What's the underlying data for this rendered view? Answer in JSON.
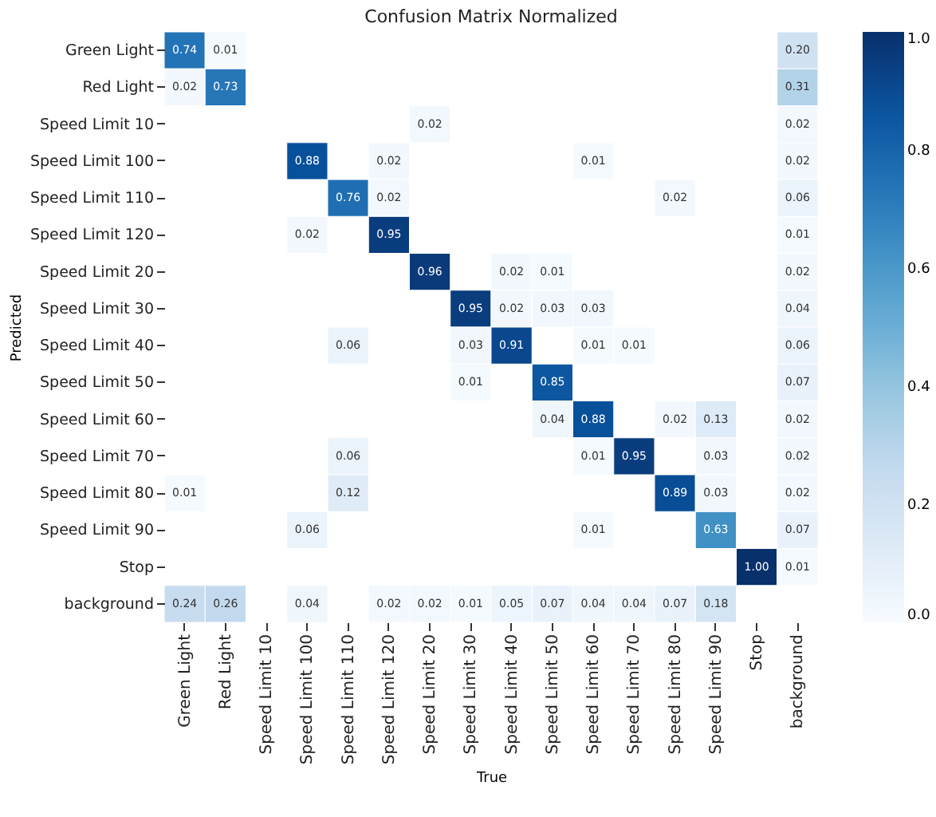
{
  "chart_data": {
    "type": "heatmap",
    "title": "Confusion Matrix Normalized",
    "xlabel": "True",
    "ylabel": "Predicted",
    "categories": [
      "Green Light",
      "Red Light",
      "Speed Limit 10",
      "Speed Limit 100",
      "Speed Limit 110",
      "Speed Limit 120",
      "Speed Limit 20",
      "Speed Limit 30",
      "Speed Limit 40",
      "Speed Limit 50",
      "Speed Limit 60",
      "Speed Limit 70",
      "Speed Limit 80",
      "Speed Limit 90",
      "Stop",
      "background"
    ],
    "y_categories": [
      "Green Light",
      "Red Light",
      "Speed Limit 10",
      "Speed Limit 100",
      "Speed Limit 110",
      "Speed Limit 120",
      "Speed Limit 20",
      "Speed Limit 30",
      "Speed Limit 40",
      "Speed Limit 50",
      "Speed Limit 60",
      "Speed Limit 70",
      "Speed Limit 80",
      "Speed Limit 90",
      "Stop",
      "background"
    ],
    "cells": [
      [
        0.74,
        0.01,
        null,
        null,
        null,
        null,
        null,
        null,
        null,
        null,
        null,
        null,
        null,
        null,
        null,
        0.2
      ],
      [
        0.02,
        0.73,
        null,
        null,
        null,
        null,
        null,
        null,
        null,
        null,
        null,
        null,
        null,
        null,
        null,
        0.31
      ],
      [
        null,
        null,
        null,
        null,
        null,
        null,
        0.02,
        null,
        null,
        null,
        null,
        null,
        null,
        null,
        null,
        0.02
      ],
      [
        null,
        null,
        null,
        0.88,
        null,
        0.02,
        null,
        null,
        null,
        null,
        0.01,
        null,
        null,
        null,
        null,
        0.02
      ],
      [
        null,
        null,
        null,
        null,
        0.76,
        0.02,
        null,
        null,
        null,
        null,
        null,
        null,
        0.02,
        null,
        null,
        0.06
      ],
      [
        null,
        null,
        null,
        0.02,
        null,
        0.95,
        null,
        null,
        null,
        null,
        null,
        null,
        null,
        null,
        null,
        0.01
      ],
      [
        null,
        null,
        null,
        null,
        null,
        null,
        0.96,
        null,
        0.02,
        0.01,
        null,
        null,
        null,
        null,
        null,
        0.02
      ],
      [
        null,
        null,
        null,
        null,
        null,
        null,
        null,
        0.95,
        0.02,
        0.03,
        0.03,
        null,
        null,
        null,
        null,
        0.04
      ],
      [
        null,
        null,
        null,
        null,
        0.06,
        null,
        null,
        0.03,
        0.91,
        null,
        0.01,
        0.01,
        null,
        null,
        null,
        0.06
      ],
      [
        null,
        null,
        null,
        null,
        null,
        null,
        null,
        0.01,
        null,
        0.85,
        null,
        null,
        null,
        null,
        null,
        0.07
      ],
      [
        null,
        null,
        null,
        null,
        null,
        null,
        null,
        null,
        null,
        0.04,
        0.88,
        null,
        0.02,
        0.13,
        null,
        0.02
      ],
      [
        null,
        null,
        null,
        null,
        0.06,
        null,
        null,
        null,
        null,
        null,
        0.01,
        0.95,
        null,
        0.03,
        null,
        0.02
      ],
      [
        0.01,
        null,
        null,
        null,
        0.12,
        null,
        null,
        null,
        null,
        null,
        null,
        null,
        0.89,
        0.03,
        null,
        0.02
      ],
      [
        null,
        null,
        null,
        0.06,
        null,
        null,
        null,
        null,
        null,
        null,
        0.01,
        null,
        null,
        0.63,
        null,
        0.07
      ],
      [
        null,
        null,
        null,
        null,
        null,
        null,
        null,
        null,
        null,
        null,
        null,
        null,
        null,
        null,
        1.0,
        0.01
      ],
      [
        0.24,
        0.26,
        null,
        0.04,
        null,
        0.02,
        0.02,
        0.01,
        0.05,
        0.07,
        0.04,
        0.04,
        0.07,
        0.18,
        null,
        null
      ]
    ],
    "cell_labels": [
      [
        "0.74",
        "0.01",
        null,
        null,
        null,
        null,
        null,
        null,
        null,
        null,
        null,
        null,
        null,
        null,
        null,
        "0.20"
      ],
      [
        "0.02",
        "0.73",
        null,
        null,
        null,
        null,
        null,
        null,
        null,
        null,
        null,
        null,
        null,
        null,
        null,
        "0.31"
      ],
      [
        null,
        null,
        null,
        null,
        null,
        null,
        "0.02",
        null,
        null,
        null,
        null,
        null,
        null,
        null,
        null,
        "0.02"
      ],
      [
        null,
        null,
        null,
        "0.88",
        null,
        "0.02",
        null,
        null,
        null,
        null,
        "0.01",
        null,
        null,
        null,
        null,
        "0.02"
      ],
      [
        null,
        null,
        null,
        null,
        "0.76",
        "0.02",
        null,
        null,
        null,
        null,
        null,
        null,
        "0.02",
        null,
        null,
        "0.06"
      ],
      [
        null,
        null,
        null,
        "0.02",
        null,
        "0.95",
        null,
        null,
        null,
        null,
        null,
        null,
        null,
        null,
        null,
        "0.01"
      ],
      [
        null,
        null,
        null,
        null,
        null,
        null,
        "0.96",
        null,
        "0.02",
        "0.01",
        null,
        null,
        null,
        null,
        null,
        "0.02"
      ],
      [
        null,
        null,
        null,
        null,
        null,
        null,
        null,
        "0.95",
        "0.02",
        "0.03",
        "0.03",
        null,
        null,
        null,
        null,
        "0.04"
      ],
      [
        null,
        null,
        null,
        null,
        "0.06",
        null,
        null,
        "0.03",
        "0.91",
        null,
        "0.01",
        "0.01",
        null,
        null,
        null,
        "0.06"
      ],
      [
        null,
        null,
        null,
        null,
        null,
        null,
        null,
        "0.01",
        null,
        "0.85",
        null,
        null,
        null,
        null,
        null,
        "0.07"
      ],
      [
        null,
        null,
        null,
        null,
        null,
        null,
        null,
        null,
        null,
        "0.04",
        "0.88",
        null,
        "0.02",
        "0.13",
        null,
        "0.02"
      ],
      [
        null,
        null,
        null,
        null,
        "0.06",
        null,
        null,
        null,
        null,
        null,
        "0.01",
        "0.95",
        null,
        "0.03",
        null,
        "0.02"
      ],
      [
        "0.01",
        null,
        null,
        null,
        "0.12",
        null,
        null,
        null,
        null,
        null,
        null,
        null,
        "0.89",
        "0.03",
        null,
        "0.02"
      ],
      [
        null,
        null,
        null,
        "0.06",
        null,
        null,
        null,
        null,
        null,
        null,
        "0.01",
        null,
        null,
        "0.63",
        null,
        "0.07"
      ],
      [
        null,
        null,
        null,
        null,
        null,
        null,
        null,
        null,
        null,
        null,
        null,
        null,
        null,
        null,
        "1.00",
        "0.01"
      ],
      [
        "0.24",
        "0.26",
        null,
        "0.04",
        null,
        "0.02",
        "0.02",
        "0.01",
        "0.05",
        "0.07",
        "0.04",
        "0.04",
        "0.07",
        "0.18",
        null,
        null
      ]
    ],
    "clim": [
      0,
      1
    ],
    "cticks": [
      {
        "value": 0,
        "label": "0.0"
      },
      {
        "value": 0.2,
        "label": "0.2"
      },
      {
        "value": 0.4,
        "label": "0.4"
      },
      {
        "value": 0.6,
        "label": "0.6"
      },
      {
        "value": 0.8,
        "label": "0.8"
      },
      {
        "value": 1,
        "label": "1.0"
      }
    ]
  }
}
